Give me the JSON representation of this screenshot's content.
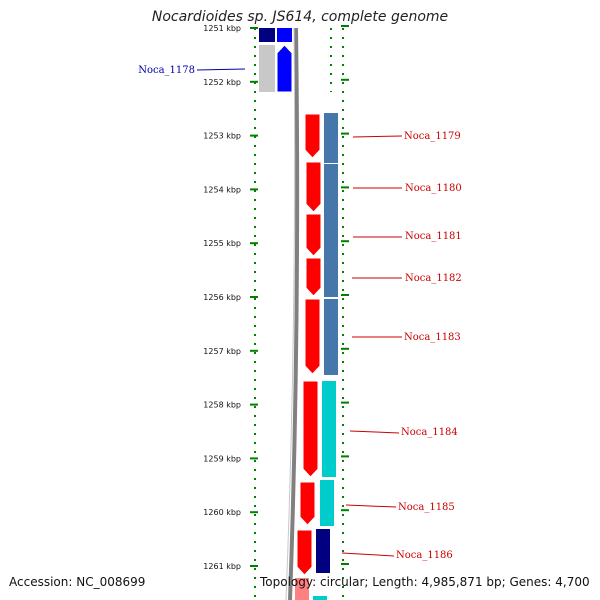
{
  "title": "Nocardioides sp. JS614, complete genome",
  "accession": "Accession: NC_008699",
  "topology": "Topology: circular; Length: 4,985,871 bp; Genes: 4,700",
  "colors": {
    "forward_cds": "#0000ff",
    "forward_cds_dark": "#000080",
    "forward_other": "#c8c8c8",
    "reverse_cds": "#ff0000",
    "steelblue_track": "#4677aa",
    "cyan_track": "#00cccc",
    "navy_track": "#000080",
    "dotted_guides": "#008000",
    "backbone": "#808080",
    "reverse_label": "#cc0000",
    "forward_label": "#0000aa"
  },
  "scale": {
    "unit": "kbp",
    "ticks": [
      {
        "kbp": 1251,
        "label": "1251 kbp"
      },
      {
        "kbp": 1252,
        "label": "1252 kbp"
      },
      {
        "kbp": 1253,
        "label": "1253 kbp"
      },
      {
        "kbp": 1254,
        "label": "1254 kbp"
      },
      {
        "kbp": 1255,
        "label": "1255 kbp"
      },
      {
        "kbp": 1256,
        "label": "1256 kbp"
      },
      {
        "kbp": 1257,
        "label": "1257 kbp"
      },
      {
        "kbp": 1258,
        "label": "1258 kbp"
      },
      {
        "kbp": 1259,
        "label": "1259 kbp"
      },
      {
        "kbp": 1260,
        "label": "1260 kbp"
      },
      {
        "kbp": 1261,
        "label": "1261 kbp"
      }
    ]
  },
  "genes": [
    {
      "label": "Noca_1178",
      "strand": "forward"
    },
    {
      "label": "Noca_1179",
      "strand": "reverse"
    },
    {
      "label": "Noca_1180",
      "strand": "reverse"
    },
    {
      "label": "Noca_1181",
      "strand": "reverse"
    },
    {
      "label": "Noca_1182",
      "strand": "reverse"
    },
    {
      "label": "Noca_1183",
      "strand": "reverse"
    },
    {
      "label": "Noca_1184",
      "strand": "reverse"
    },
    {
      "label": "Noca_1185",
      "strand": "reverse"
    },
    {
      "label": "Noca_1186",
      "strand": "reverse"
    }
  ]
}
